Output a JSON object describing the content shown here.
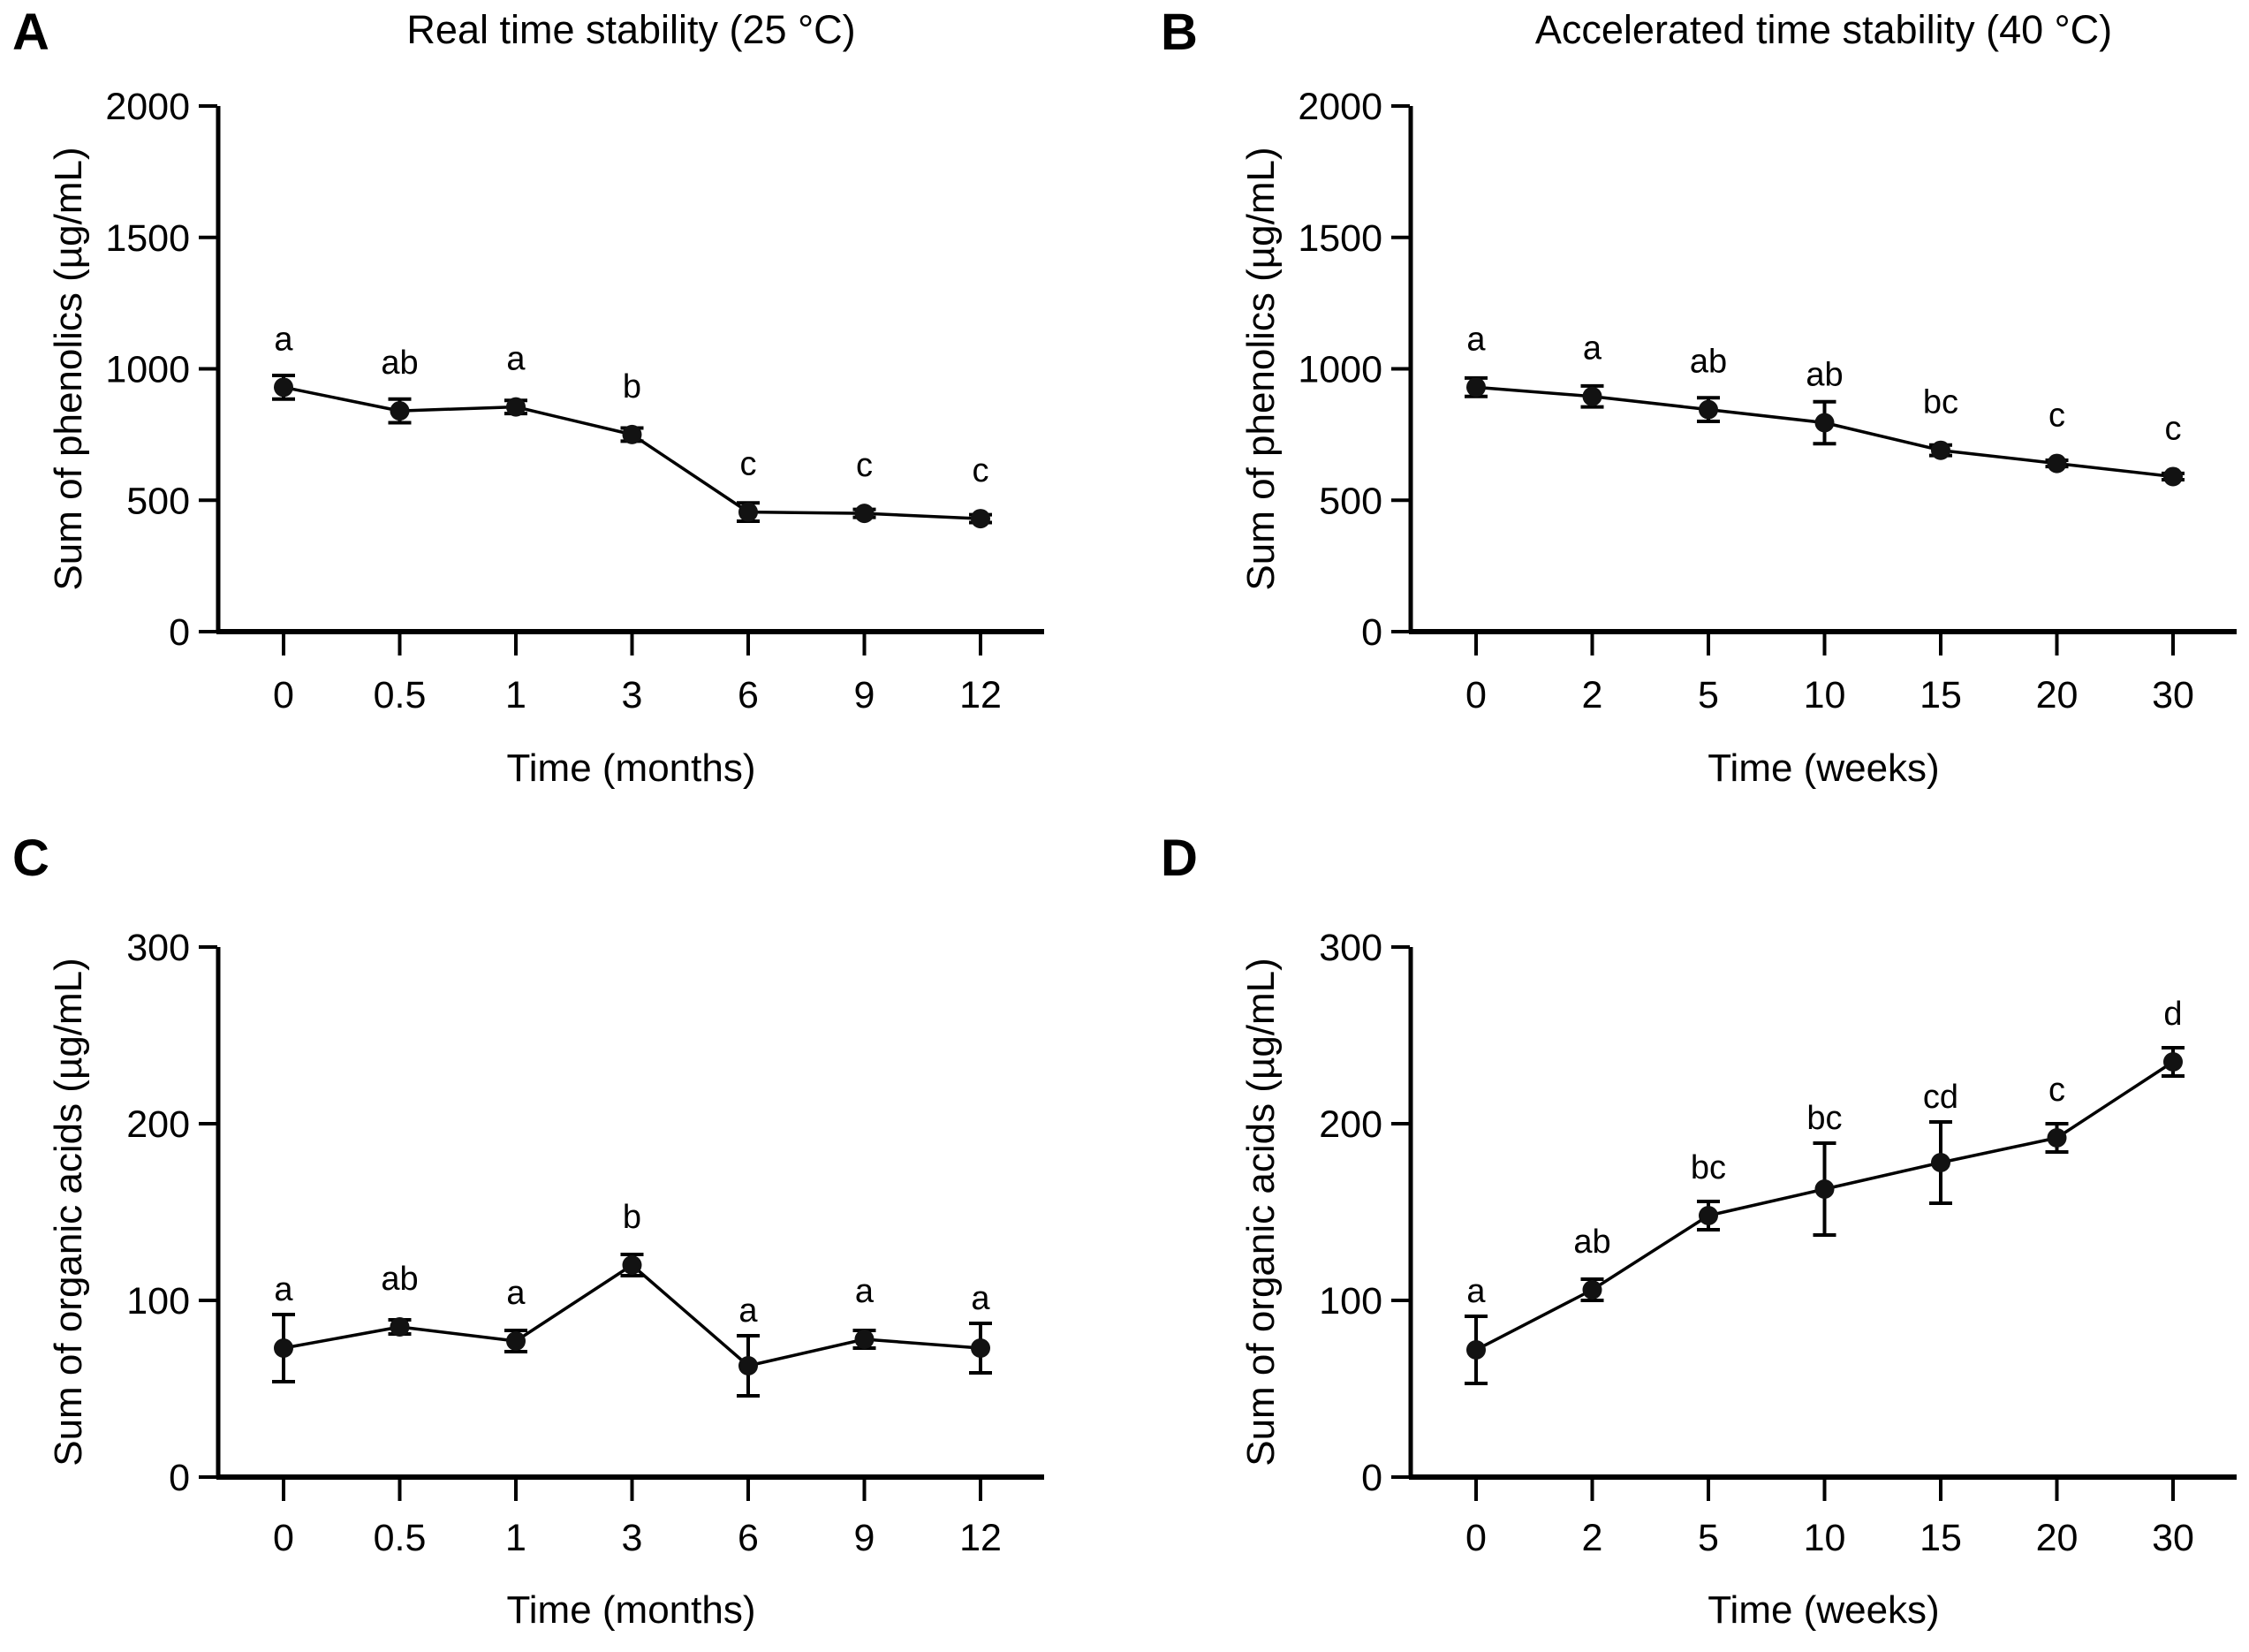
{
  "figure": {
    "background": "#ffffff",
    "ink_color": "#000000",
    "marker_color": "#121212"
  },
  "chart_data": [
    {
      "id": "A",
      "type": "line",
      "panel_label": "A",
      "title": "Real time stability (25 °C)",
      "xlabel": "Time (months)",
      "ylabel": "Sum of phenolics (µg/mL)",
      "ylim": [
        0,
        2000
      ],
      "yticks": [
        0,
        500,
        1000,
        1500,
        2000
      ],
      "categories": [
        "0",
        "0.5",
        "1",
        "3",
        "6",
        "9",
        "12"
      ],
      "values": [
        930,
        840,
        855,
        750,
        455,
        450,
        430
      ],
      "errors": [
        45,
        45,
        25,
        25,
        35,
        15,
        15
      ],
      "sig_letters": [
        "a",
        "ab",
        "a",
        "b",
        "c",
        "c",
        "c"
      ],
      "legend": null,
      "grid": false
    },
    {
      "id": "B",
      "type": "line",
      "panel_label": "B",
      "title": "Accelerated time stability (40 °C)",
      "xlabel": "Time (weeks)",
      "ylabel": "Sum of phenolics (µg/mL)",
      "ylim": [
        0,
        2000
      ],
      "yticks": [
        0,
        500,
        1000,
        1500,
        2000
      ],
      "categories": [
        "0",
        "2",
        "5",
        "10",
        "15",
        "20",
        "30"
      ],
      "values": [
        930,
        895,
        845,
        795,
        690,
        640,
        590
      ],
      "errors": [
        35,
        40,
        45,
        80,
        20,
        12,
        12
      ],
      "sig_letters": [
        "a",
        "a",
        "ab",
        "ab",
        "bc",
        "c",
        "c"
      ],
      "legend": null,
      "grid": false
    },
    {
      "id": "C",
      "type": "line",
      "panel_label": "C",
      "title": "",
      "xlabel": "Time (months)",
      "ylabel": "Sum of organic acids (µg/mL)",
      "ylim": [
        0,
        300
      ],
      "yticks": [
        0,
        100,
        200,
        300
      ],
      "categories": [
        "0",
        "0.5",
        "1",
        "3",
        "6",
        "9",
        "12"
      ],
      "values": [
        73,
        85,
        77,
        120,
        63,
        78,
        73
      ],
      "errors": [
        19,
        4,
        6,
        6,
        17,
        5,
        14
      ],
      "sig_letters": [
        "a",
        "ab",
        "a",
        "b",
        "a",
        "a",
        "a"
      ],
      "legend": null,
      "grid": false
    },
    {
      "id": "D",
      "type": "line",
      "panel_label": "D",
      "title": "",
      "xlabel": "Time (weeks)",
      "ylabel": "Sum of organic acids (µg/mL)",
      "ylim": [
        0,
        300
      ],
      "yticks": [
        0,
        100,
        200,
        300
      ],
      "categories": [
        "0",
        "2",
        "5",
        "10",
        "15",
        "20",
        "30"
      ],
      "values": [
        72,
        106,
        148,
        163,
        178,
        192,
        235
      ],
      "errors": [
        19,
        6,
        8,
        26,
        23,
        8,
        8
      ],
      "sig_letters": [
        "a",
        "ab",
        "bc",
        "bc",
        "cd",
        "c",
        "d"
      ],
      "legend": null,
      "grid": false
    }
  ]
}
